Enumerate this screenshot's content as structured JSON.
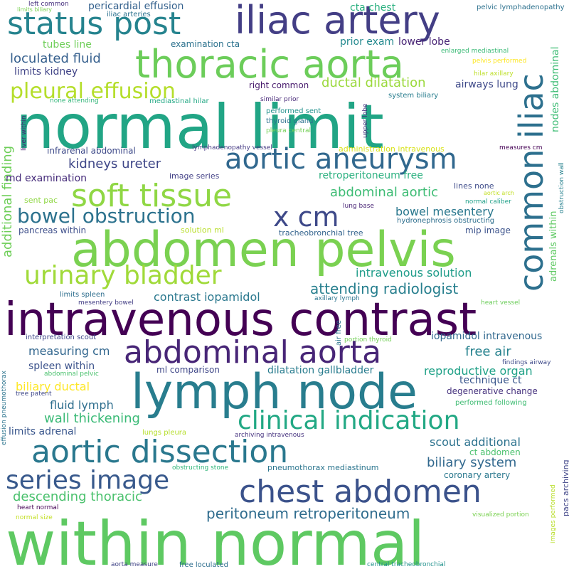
{
  "words": [
    {
      "text": "within normal",
      "color": "#5ec962"
    },
    {
      "text": "normal limit",
      "color": "#21a585"
    },
    {
      "text": "abdomen pelvis",
      "color": "#7ad151"
    },
    {
      "text": "intravenous contrast",
      "color": "#440154"
    },
    {
      "text": "lymph node",
      "color": "#287d8e"
    },
    {
      "text": "thoracic aorta",
      "color": "#6ccd5a"
    },
    {
      "text": "iliac artery",
      "color": "#433e85"
    },
    {
      "text": "status post",
      "color": "#25838e"
    },
    {
      "text": "common iliac",
      "color": "#2d708e"
    },
    {
      "text": "aortic aneurysm",
      "color": "#31688e"
    },
    {
      "text": "soft tissue",
      "color": "#8fd744"
    },
    {
      "text": "abdominal aorta",
      "color": "#482677"
    },
    {
      "text": "aortic dissection",
      "color": "#2a788e"
    },
    {
      "text": "chest abdomen",
      "color": "#3b528b"
    },
    {
      "text": "urinary bladder",
      "color": "#a0da39"
    },
    {
      "text": "clinical indication",
      "color": "#22a884"
    },
    {
      "text": "series image",
      "color": "#38598c"
    },
    {
      "text": "bowel obstruction",
      "color": "#2c728e"
    },
    {
      "text": "x cm",
      "color": "#3e4989"
    },
    {
      "text": "pleural effusion",
      "color": "#b5de2b"
    },
    {
      "text": "attending radiologist",
      "color": "#277f8e"
    },
    {
      "text": "peritoneum retroperitoneum",
      "color": "#2f6c8e"
    },
    {
      "text": "descending thoracic",
      "color": "#4ac16d"
    },
    {
      "text": "kidneys ureter",
      "color": "#3f4788"
    },
    {
      "text": "loculated fluid",
      "color": "#355f8d"
    },
    {
      "text": "abdominal aortic",
      "color": "#3dbc74"
    },
    {
      "text": "contrast iopamidol",
      "color": "#2a788e"
    },
    {
      "text": "intravenous solution",
      "color": "#1e9c89"
    },
    {
      "text": "bowel mesentery",
      "color": "#2a788e"
    },
    {
      "text": "biliary system",
      "color": "#31688e"
    },
    {
      "text": "reproductive organ",
      "color": "#1fa187"
    },
    {
      "text": "scout additional",
      "color": "#2c728e"
    },
    {
      "text": "free air",
      "color": "#26828e"
    },
    {
      "text": "wall thickening",
      "color": "#3aba76"
    },
    {
      "text": "ductal dilatation",
      "color": "#9bd93c"
    },
    {
      "text": "retroperitoneum free",
      "color": "#2ab07f"
    },
    {
      "text": "additional finding",
      "color": "#6ece58"
    },
    {
      "text": "measuring cm",
      "color": "#31668e"
    },
    {
      "text": "biliary ductal",
      "color": "#fde725"
    },
    {
      "text": "spleen within",
      "color": "#3b528b"
    },
    {
      "text": "fluid lymph",
      "color": "#2e6e8e"
    },
    {
      "text": "md examination",
      "color": "#472d7b"
    },
    {
      "text": "limits kidney",
      "color": "#414487"
    },
    {
      "text": "limits adrenal",
      "color": "#39568c"
    },
    {
      "text": "pericardial effusion",
      "color": "#34618d"
    },
    {
      "text": "cta chest",
      "color": "#2ab07f"
    },
    {
      "text": "prior exam",
      "color": "#23898e"
    },
    {
      "text": "lower lobe",
      "color": "#482475"
    },
    {
      "text": "tubes line",
      "color": "#6ece58"
    },
    {
      "text": "examination cta",
      "color": "#2c728e"
    },
    {
      "text": "infrarenal abdominal",
      "color": "#3e4a89"
    },
    {
      "text": "dilatation gallbladder",
      "color": "#287c8e"
    },
    {
      "text": "iopamidol intravenous",
      "color": "#31688e"
    },
    {
      "text": "technique ct",
      "color": "#39568c"
    },
    {
      "text": "degenerative change",
      "color": "#46327e"
    },
    {
      "text": "right common",
      "color": "#481b6d"
    },
    {
      "text": "airways lung",
      "color": "#3e4989"
    },
    {
      "text": "nodes abdominal",
      "color": "#3dbc74"
    },
    {
      "text": "adrenals within",
      "color": "#5ec962"
    },
    {
      "text": "mip image",
      "color": "#3b528b"
    },
    {
      "text": "pneumothorax mediastinum",
      "color": "#2b758e"
    },
    {
      "text": "ml comparison",
      "color": "#3f4788"
    },
    {
      "text": "ct abdomen",
      "color": "#4ac16d"
    },
    {
      "text": "coronary artery",
      "color": "#2a788e"
    },
    {
      "text": "pacs archiving",
      "color": "#404588"
    },
    {
      "text": "performed following",
      "color": "#3fbc73"
    },
    {
      "text": "lines none",
      "color": "#3e4c8a"
    },
    {
      "text": "hydronephrosis obstructing",
      "color": "#2e6f8e"
    },
    {
      "text": "sent pac",
      "color": "#8fd744"
    },
    {
      "text": "pancreas within",
      "color": "#3d4e8a"
    },
    {
      "text": "solution ml",
      "color": "#b8de29"
    },
    {
      "text": "tracheobronchial tree",
      "color": "#33638d"
    },
    {
      "text": "image series",
      "color": "#424086"
    },
    {
      "text": "administration intravenous",
      "color": "#d8e219"
    },
    {
      "text": "measures cm",
      "color": "#440154"
    },
    {
      "text": "performed sent",
      "color": "#21918c"
    },
    {
      "text": "thyroid gland",
      "color": "#2c718e"
    },
    {
      "text": "pleura central",
      "color": "#73d056"
    },
    {
      "text": "similar prior",
      "color": "#482979"
    },
    {
      "text": "system biliary",
      "color": "#287d8e"
    },
    {
      "text": "mediastinal hilar",
      "color": "#22a884"
    },
    {
      "text": "none attending",
      "color": "#33b67a"
    },
    {
      "text": "upper lobe",
      "color": "#46307e"
    },
    {
      "text": "liver within",
      "color": "#482173"
    },
    {
      "text": "lymphadenopathy vessel",
      "color": "#443983"
    },
    {
      "text": "pelvic lymphadenopathy",
      "color": "#2d718e"
    },
    {
      "text": "enlarged mediastinal",
      "color": "#3aba76"
    },
    {
      "text": "pelvis performed",
      "color": "#fde725"
    },
    {
      "text": "hilar axillary",
      "color": "#bddf26"
    },
    {
      "text": "left common",
      "color": "#46307e"
    },
    {
      "text": "limits biliary",
      "color": "#7ad151"
    },
    {
      "text": "iliac arteries",
      "color": "#2c728e"
    },
    {
      "text": "obstruction wall",
      "color": "#26818e"
    },
    {
      "text": "lung base",
      "color": "#482475"
    },
    {
      "text": "aortic arch",
      "color": "#c2df23"
    },
    {
      "text": "normal caliber",
      "color": "#1fa088"
    },
    {
      "text": "limits spleen",
      "color": "#2e6e8e"
    },
    {
      "text": "mesentery bowel",
      "color": "#433e85"
    },
    {
      "text": "axillary lymph",
      "color": "#2b748e"
    },
    {
      "text": "heart vessel",
      "color": "#6ccd5a"
    },
    {
      "text": "interpretation scout",
      "color": "#3f4788"
    },
    {
      "text": "air free",
      "color": "#2b758e"
    },
    {
      "text": "portion thyroid",
      "color": "#73d056"
    },
    {
      "text": "abdominal pelvic",
      "color": "#4ac16d"
    },
    {
      "text": "findings airway",
      "color": "#3e4a89"
    },
    {
      "text": "tree patent",
      "color": "#3f4889"
    },
    {
      "text": "effusion pneumothorax",
      "color": "#2b748e"
    },
    {
      "text": "lungs pleura",
      "color": "#b5de2b"
    },
    {
      "text": "archiving intravenous",
      "color": "#46337f"
    },
    {
      "text": "obstructing stone",
      "color": "#32b67a"
    },
    {
      "text": "heart normal",
      "color": "#440154"
    },
    {
      "text": "normal size",
      "color": "#c2df23"
    },
    {
      "text": "visualized portion",
      "color": "#7ad151"
    },
    {
      "text": "images performed",
      "color": "#b8de29"
    },
    {
      "text": "aorta measure",
      "color": "#414487"
    },
    {
      "text": "free loculated",
      "color": "#2e6e8e"
    },
    {
      "text": "central tracheobronchial",
      "color": "#21918c"
    }
  ]
}
